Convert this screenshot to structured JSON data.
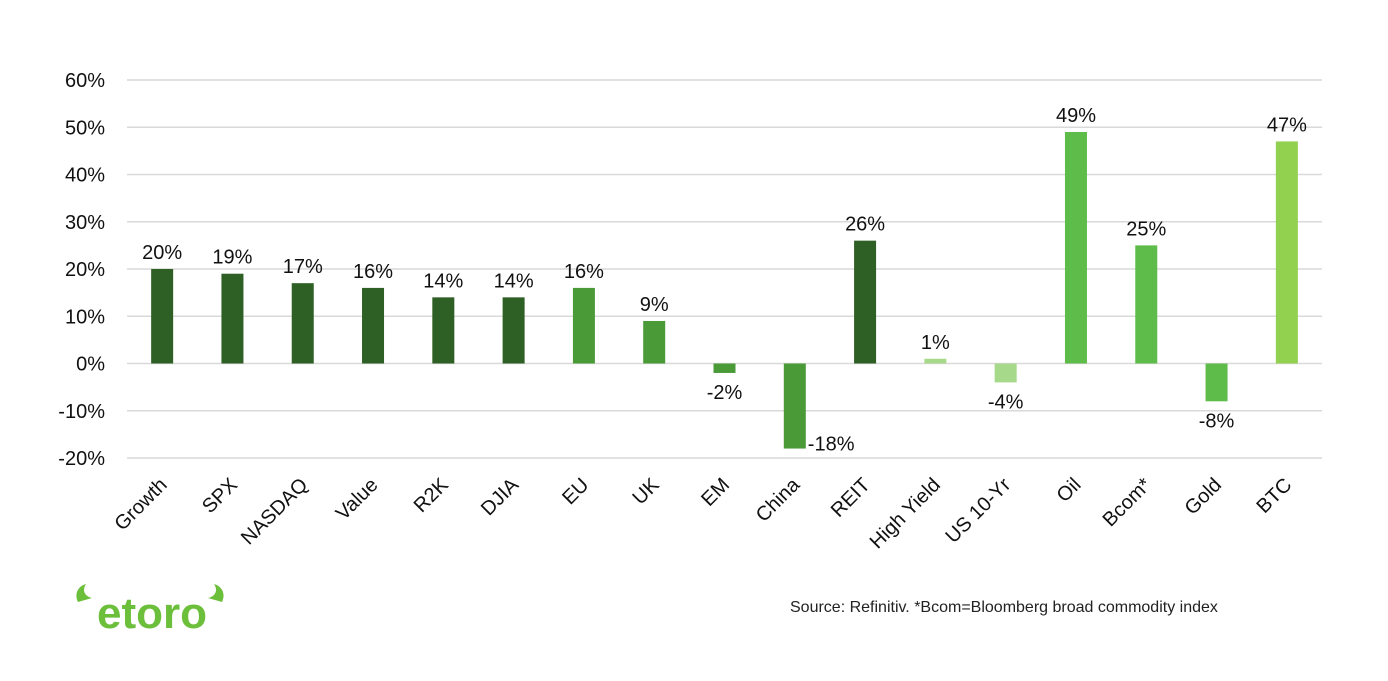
{
  "brand": {
    "logo_text": "etoro",
    "logo_color": "#6cbf3b"
  },
  "source_note": "Source: Refinitiv. *Bcom=Bloomberg broad commodity index",
  "chart_data": {
    "type": "bar",
    "title": "",
    "xlabel": "",
    "ylabel": "",
    "ylim": [
      -20,
      60
    ],
    "yticks": [
      -20,
      -10,
      0,
      10,
      20,
      30,
      40,
      50,
      60
    ],
    "ytick_labels": [
      "-20%",
      "-10%",
      "0%",
      "10%",
      "20%",
      "30%",
      "40%",
      "50%",
      "60%"
    ],
    "grid": true,
    "legend": "none",
    "categories": [
      "Growth",
      "SPX",
      "NASDAQ",
      "Value",
      "R2K",
      "DJIA",
      "EU",
      "UK",
      "EM",
      "China",
      "REIT",
      "High Yield",
      "US 10-Yr",
      "Oil",
      "Bcom*",
      "Gold",
      "BTC"
    ],
    "values": [
      20,
      19,
      17,
      16,
      14,
      14,
      16,
      9,
      -2,
      -18,
      26,
      1,
      -4,
      49,
      25,
      -8,
      47
    ],
    "data_labels": [
      "20%",
      "19%",
      "17%",
      "16%",
      "14%",
      "14%",
      "16%",
      "9%",
      "-2%",
      "-18%",
      "26%",
      "1%",
      "-4%",
      "49%",
      "25%",
      "-8%",
      "47%"
    ],
    "colors": [
      "#2e5f24",
      "#2e5f24",
      "#2e5f24",
      "#2e5f24",
      "#2e5f24",
      "#2e5f24",
      "#4a9a38",
      "#4a9a38",
      "#4a9a38",
      "#4a9a38",
      "#2e5f24",
      "#a6d98a",
      "#a6d98a",
      "#5ebc4a",
      "#5ebc4a",
      "#5ebc4a",
      "#92d050"
    ]
  }
}
